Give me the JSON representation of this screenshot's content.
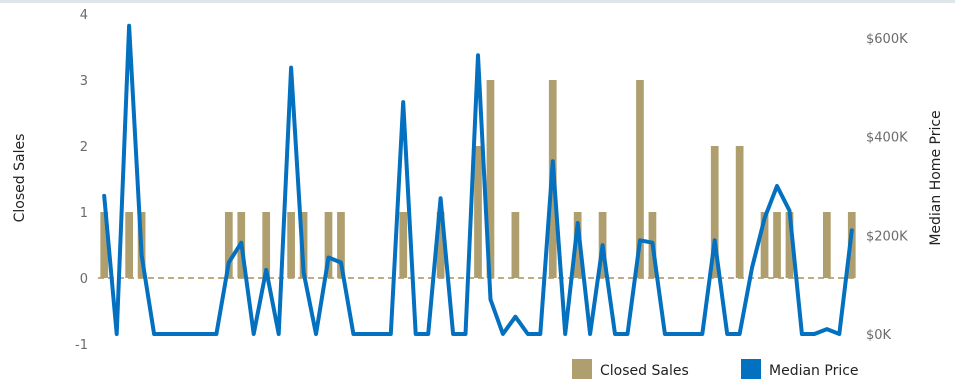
{
  "chart_data": {
    "type": "bar+line",
    "xlabel": "",
    "left_axis": {
      "label": "Closed Sales",
      "ticks": [
        "4",
        "3",
        "2",
        "1",
        "0",
        "-1"
      ],
      "range": [
        -1,
        4
      ]
    },
    "right_axis": {
      "label": "Median Home Price",
      "ticks": [
        "$600K",
        "$400K",
        "$200K",
        "$0K"
      ],
      "range": [
        0,
        600000
      ]
    },
    "series": [
      {
        "name": "Closed Sales",
        "type": "bar",
        "color": "#b09f6e",
        "values": [
          1,
          0,
          1,
          1,
          0,
          0,
          0,
          0,
          0,
          0,
          1,
          1,
          0,
          1,
          0,
          1,
          1,
          0,
          1,
          1,
          0,
          0,
          0,
          0,
          1,
          0,
          0,
          1,
          0,
          0,
          2,
          3,
          0,
          1,
          0,
          0,
          3,
          0,
          1,
          0,
          1,
          0,
          0,
          3,
          1,
          0,
          0,
          0,
          0,
          2,
          0,
          2,
          0,
          1,
          1,
          1,
          0,
          0,
          1,
          0,
          1
        ]
      },
      {
        "name": "Median Price",
        "type": "line",
        "color": "#0470c0",
        "values": [
          280000,
          0,
          625000,
          160000,
          0,
          0,
          0,
          0,
          0,
          0,
          145000,
          185000,
          0,
          130000,
          0,
          540000,
          125000,
          0,
          155000,
          145000,
          0,
          0,
          0,
          0,
          470000,
          0,
          0,
          275000,
          0,
          0,
          565000,
          70000,
          0,
          35000,
          0,
          0,
          350000,
          0,
          225000,
          0,
          180000,
          0,
          0,
          190000,
          185000,
          0,
          0,
          0,
          0,
          190000,
          0,
          0,
          135000,
          235000,
          300000,
          250000,
          0,
          0,
          10000,
          0,
          210000
        ]
      }
    ],
    "legend_position": "bottom-right",
    "grid": false
  },
  "legend": {
    "closed_sales": "Closed Sales",
    "median_price": "Median Price"
  }
}
